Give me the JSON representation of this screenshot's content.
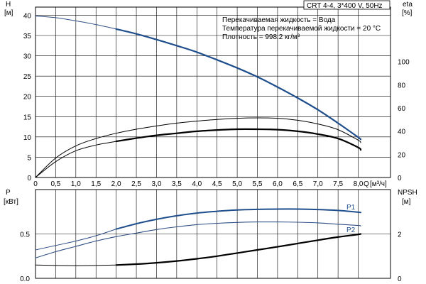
{
  "chart_data": [
    {
      "type": "line",
      "title_box": "CRT 4-4, 3*400 V, 50Hz",
      "info_lines": [
        "Перекачиваемая жидкость = Вода",
        "Температура перекачиваемой жидкости = 20 °C",
        "Плотность = 998.2 кг/м³"
      ],
      "y_left_label": "H",
      "y_left_unit": "[м]",
      "y_right_label": "eta",
      "y_right_unit": "[%]",
      "x_label": "Q",
      "x_unit": "[м³/ч]",
      "xlim": [
        0,
        8.8
      ],
      "ylim_left": [
        0,
        42
      ],
      "ylim_right": [
        0,
        147
      ],
      "x_ticks": [
        "0",
        "0,5",
        "1,0",
        "1,5",
        "2,0",
        "2,5",
        "3,0",
        "3,5",
        "4,0",
        "4,5",
        "5,0",
        "5,5",
        "6,0",
        "6,5",
        "7,0",
        "7,5",
        "8,0"
      ],
      "y_left_ticks": [
        "0",
        "5",
        "10",
        "15",
        "20",
        "25",
        "30",
        "35",
        "40"
      ],
      "y_right_ticks": [
        "0",
        "20",
        "40",
        "60",
        "80",
        "100"
      ],
      "grid": true,
      "series": [
        {
          "key": "H_extended",
          "axis": "left",
          "color": "#2f4f85",
          "x": [
            0,
            0.5,
            1.0,
            1.5,
            2.0
          ],
          "values": [
            39.8,
            39.4,
            38.6,
            37.7,
            36.6
          ]
        },
        {
          "key": "H",
          "axis": "left",
          "color": "#1f4e8c",
          "x": [
            2.0,
            2.5,
            3.0,
            3.5,
            4.0,
            4.5,
            5.0,
            5.5,
            6.0,
            6.5,
            7.0,
            7.5,
            8.0,
            8.06
          ],
          "values": [
            36.6,
            35.4,
            34.0,
            32.5,
            30.9,
            29.0,
            27.0,
            24.8,
            22.3,
            19.6,
            16.7,
            13.4,
            9.9,
            9.4
          ]
        },
        {
          "key": "eta_total_thin",
          "axis": "left",
          "color": "#000000",
          "x": [
            0,
            0.5,
            1.0,
            1.5,
            2.0,
            2.5,
            3.0,
            3.5,
            4.0,
            4.5,
            5.0,
            5.5,
            6.0,
            6.5,
            7.0,
            7.5,
            8.0,
            8.06
          ],
          "values": [
            0,
            4.8,
            7.8,
            9.6,
            10.9,
            11.9,
            12.7,
            13.4,
            13.9,
            14.3,
            14.6,
            14.7,
            14.6,
            14.1,
            13.2,
            11.8,
            9.2,
            8.6
          ]
        },
        {
          "key": "eta_extended",
          "axis": "left",
          "color": "#000000",
          "x": [
            0,
            0.5,
            1.0,
            1.5,
            2.0
          ],
          "values": [
            0,
            3.9,
            6.6,
            8.0,
            8.9
          ]
        },
        {
          "key": "eta",
          "axis": "left",
          "color": "#000000",
          "x": [
            2.0,
            2.5,
            3.0,
            3.5,
            4.0,
            4.5,
            5.0,
            5.5,
            6.0,
            6.5,
            7.0,
            7.5,
            8.0,
            8.06
          ],
          "values": [
            8.9,
            9.7,
            10.4,
            10.9,
            11.4,
            11.7,
            11.9,
            11.9,
            11.8,
            11.4,
            10.7,
            9.6,
            7.4,
            6.8
          ]
        }
      ]
    },
    {
      "type": "line",
      "y_left_label": "P",
      "y_left_unit": "[кВт]",
      "y_right_label": "NPSH",
      "y_right_unit": "[м]",
      "xlim": [
        0,
        8.8
      ],
      "ylim_left": [
        0,
        1.0
      ],
      "ylim_right": [
        0,
        4
      ],
      "y_left_ticks": [
        "0.0",
        "0.5"
      ],
      "y_right_ticks": [
        "0",
        "2"
      ],
      "grid": true,
      "series": [
        {
          "key": "P1_extended",
          "axis": "left",
          "color": "#2f4f85",
          "x": [
            0,
            0.5,
            1.0,
            1.5,
            2.0
          ],
          "values": [
            0.32,
            0.37,
            0.42,
            0.48,
            0.555
          ]
        },
        {
          "name": "P1",
          "key": "P1",
          "axis": "left",
          "color": "#1f4e8c",
          "x": [
            2.0,
            2.5,
            3.0,
            3.5,
            4.0,
            4.5,
            5.0,
            5.5,
            6.0,
            6.5,
            7.0,
            7.5,
            8.0,
            8.06
          ],
          "values": [
            0.555,
            0.615,
            0.665,
            0.705,
            0.735,
            0.755,
            0.77,
            0.777,
            0.78,
            0.78,
            0.775,
            0.765,
            0.745,
            0.742
          ]
        },
        {
          "name": "P2",
          "key": "P2",
          "axis": "left",
          "color": "#2f4f85",
          "x": [
            0,
            0.5,
            1.0,
            1.5,
            2.0,
            2.5,
            3.0,
            3.5,
            4.0,
            4.5,
            5.0,
            5.5,
            6.0,
            6.5,
            7.0,
            7.5,
            8.0,
            8.06
          ],
          "values": [
            0.23,
            0.3,
            0.36,
            0.42,
            0.47,
            0.51,
            0.55,
            0.58,
            0.605,
            0.62,
            0.63,
            0.635,
            0.635,
            0.632,
            0.625,
            0.61,
            0.595,
            0.59
          ]
        },
        {
          "key": "NPSH_extended",
          "axis": "right",
          "color": "#000000",
          "x": [
            0,
            0.5,
            1.0,
            1.5,
            2.0
          ],
          "values": [
            0.6,
            0.58,
            0.57,
            0.58,
            0.6
          ]
        },
        {
          "key": "NPSH",
          "axis": "right",
          "color": "#000000",
          "x": [
            2.0,
            2.5,
            3.0,
            3.5,
            4.0,
            4.5,
            5.0,
            5.5,
            6.0,
            6.5,
            7.0,
            7.5,
            8.0,
            8.06
          ],
          "values": [
            0.6,
            0.64,
            0.7,
            0.78,
            0.88,
            1.0,
            1.14,
            1.28,
            1.42,
            1.57,
            1.72,
            1.86,
            1.98,
            2.0
          ]
        }
      ]
    }
  ]
}
